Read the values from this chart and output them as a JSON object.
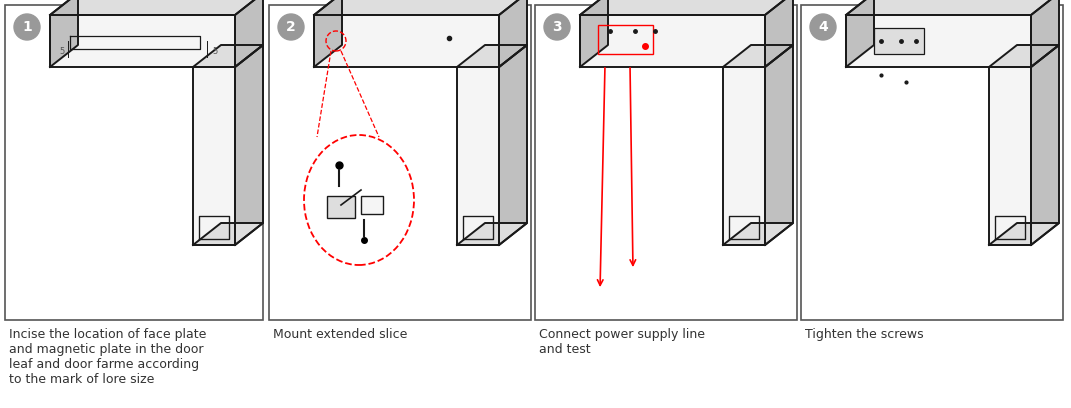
{
  "background_color": "#ffffff",
  "border_color": "#555555",
  "figure_width": 10.71,
  "figure_height": 4.08,
  "panels": [
    {
      "id": 1,
      "caption": "Incise the location of face plate\nand magnetic plate in the door\nleaf and door farme according\nto the mark of lore size"
    },
    {
      "id": 2,
      "caption": "Mount extended slice"
    },
    {
      "id": 3,
      "caption": "Connect power supply line\nand test"
    },
    {
      "id": 4,
      "caption": "Tighten the screws"
    }
  ],
  "text_color": "#333333",
  "number_bg": "#999999",
  "caption_fontsize": 9.0,
  "number_fontsize": 10,
  "line_color": "#1a1a1a",
  "face_light": "#f5f5f5",
  "face_mid": "#dedede",
  "face_dark": "#c0c0c0"
}
